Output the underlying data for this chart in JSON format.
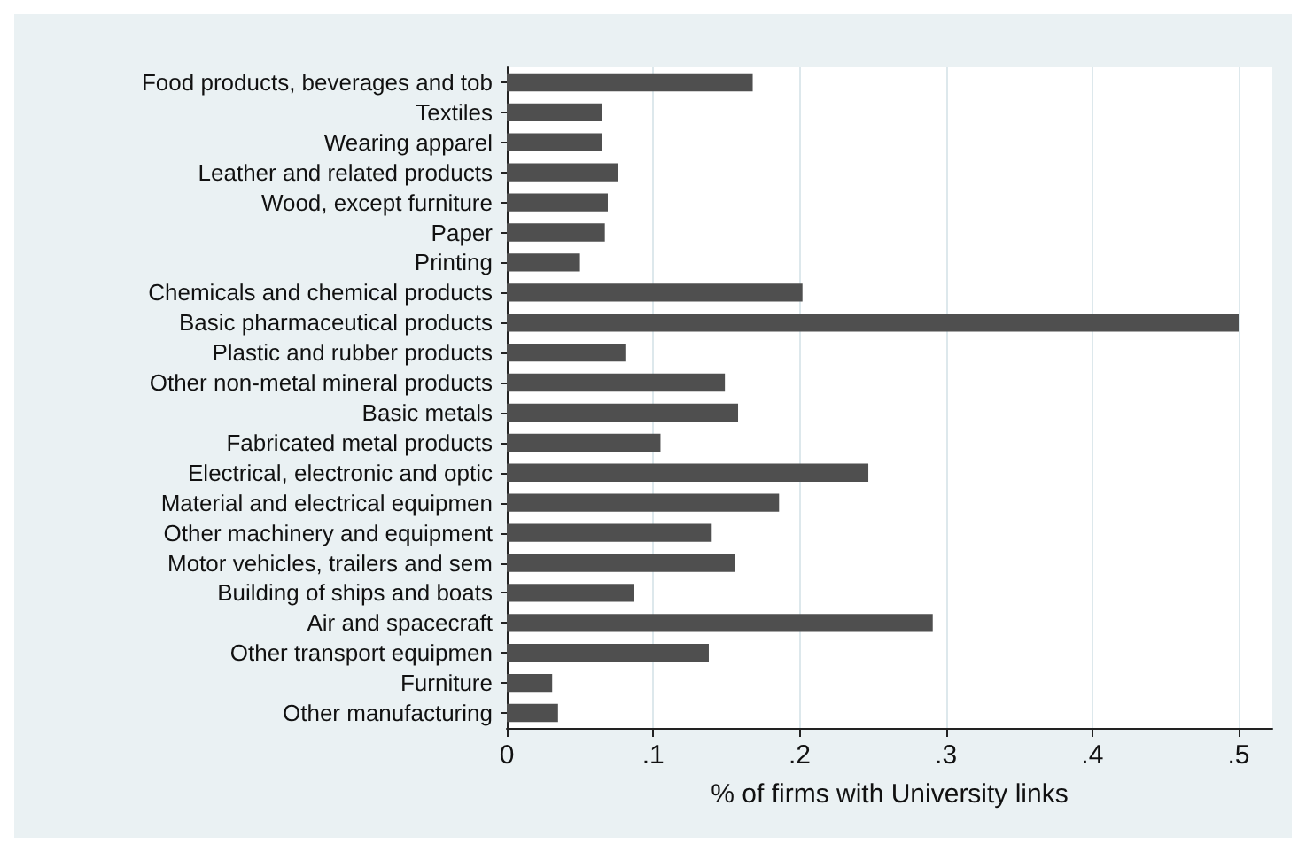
{
  "chart_data": {
    "type": "bar",
    "orientation": "horizontal",
    "xlabel": "% of firms with University links",
    "categories": [
      "Food products, beverages and tob",
      "Textiles",
      "Wearing apparel",
      "Leather and related products",
      "Wood, except furniture",
      "Paper",
      "Printing",
      "Chemicals and chemical products",
      "Basic pharmaceutical products",
      "Plastic and rubber products",
      "Other non-metal mineral products",
      "Basic metals",
      "Fabricated metal products",
      "Electrical, electronic and optic",
      "Material and electrical equipmen",
      "Other machinery and equipment",
      "Motor vehicles, trailers and sem",
      "Building of ships and boats",
      "Air and spacecraft",
      "Other transport equipmen",
      "Furniture",
      "Other manufacturing"
    ],
    "values": [
      0.168,
      0.065,
      0.065,
      0.076,
      0.069,
      0.067,
      0.05,
      0.202,
      0.5,
      0.081,
      0.149,
      0.158,
      0.105,
      0.247,
      0.186,
      0.14,
      0.156,
      0.087,
      0.291,
      0.138,
      0.031,
      0.035
    ],
    "color": "#4f4f4f",
    "xlim": [
      0,
      0.523
    ],
    "xticks": [
      0,
      {
        "value": 0.1,
        "label": ".1"
      },
      {
        "value": 0.2,
        "label": ".2"
      },
      {
        "value": 0.3,
        "label": ".3"
      },
      {
        "value": 0.4,
        "label": ".4"
      },
      {
        "value": 0.5,
        "label": ".5"
      }
    ],
    "grid": "x"
  }
}
